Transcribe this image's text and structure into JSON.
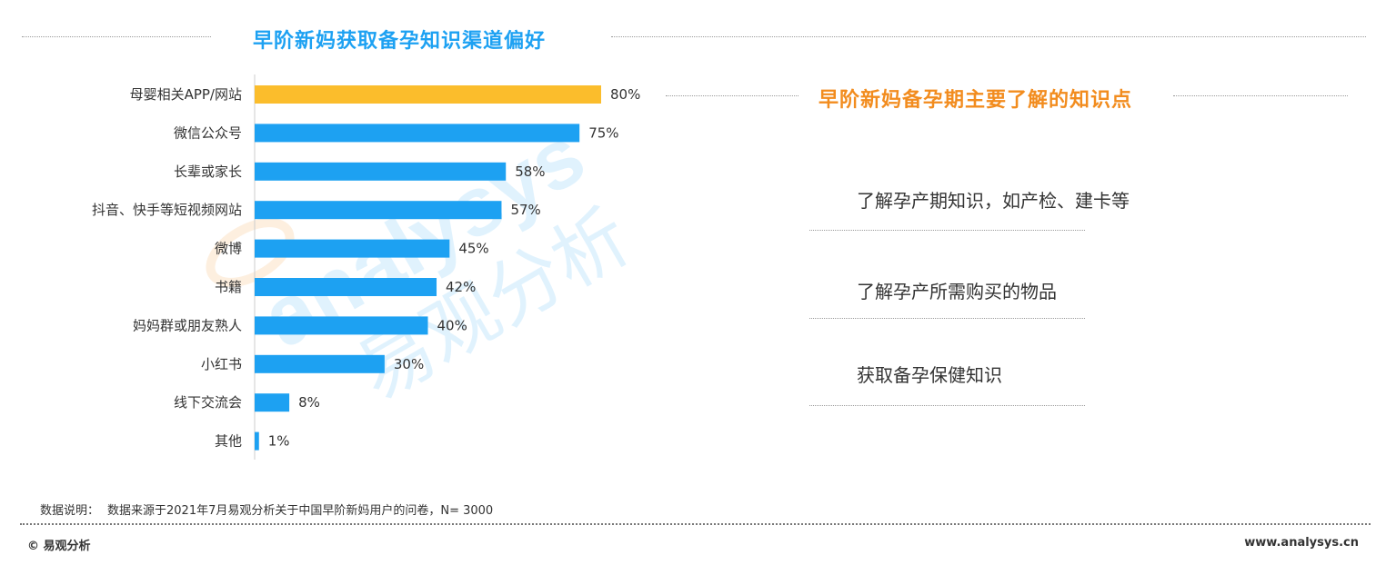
{
  "left_title": "早阶新妈获取备孕知识渠道偏好",
  "right_title": "早阶新妈备孕期主要了解的知识点",
  "knowledge_points": [
    "了解孕产期知识，如产检、建卡等",
    "了解孕产所需购买的物品",
    "获取备孕保健知识"
  ],
  "note": {
    "label": "数据说明：",
    "text": "数据来源于2021年7月易观分析关于中国早阶新妈用户的问卷，N= 3000"
  },
  "footer": {
    "brand": "© 易观分析",
    "url": "www.analysys.cn"
  },
  "watermark": {
    "latin": "analysys",
    "chinese": "易观分析"
  },
  "colors": {
    "bar": "#1da1f2",
    "bar_highlight": "#fbbd2c",
    "left_title": "#1da1f2",
    "right_title": "#f28c1e"
  },
  "chart_data": {
    "type": "bar",
    "orientation": "horizontal",
    "title": "早阶新妈获取备孕知识渠道偏好",
    "categories": [
      "母婴相关APP/网站",
      "微信公众号",
      "长辈或家长",
      "抖音、快手等短视频网站",
      "微博",
      "书籍",
      "妈妈群或朋友熟人",
      "小红书",
      "线下交流会",
      "其他"
    ],
    "values": [
      80,
      75,
      58,
      57,
      45,
      42,
      40,
      30,
      8,
      1
    ],
    "value_labels": [
      "80%",
      "75%",
      "58%",
      "57%",
      "45%",
      "42%",
      "40%",
      "30%",
      "8%",
      "1%"
    ],
    "highlight_index": 0,
    "unit": "%",
    "xlim": [
      0,
      100
    ]
  }
}
